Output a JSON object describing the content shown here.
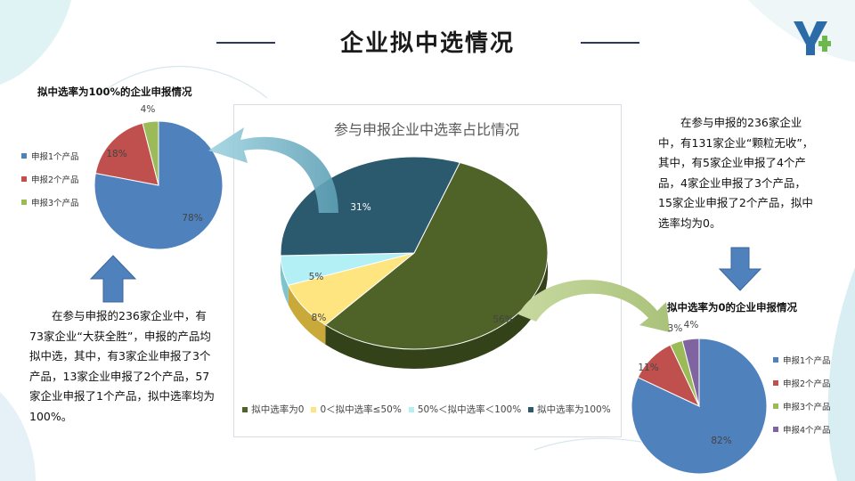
{
  "page_title": "企业拟中选情况",
  "left_chart_title": "拟中选率为100%的企业申报情况",
  "right_chart_title": "拟中选率为0的企业申报情况",
  "center_chart_title": "参与申报企业中选率占比情况",
  "left_paragraph": "在参与申报的236家企业中，有73家企业“大获全胜”，申报的产品均拟中选，其中，有3家企业申报了3个产品，13家企业申报了2个产品，57家企业申报了1个产品，拟中选率均为100%。",
  "right_paragraph": "在参与申报的236家企业中，有131家企业“颗粒无收”，其中，有5家企业申报了4个产品，4家企业申报了3个产品，15家企业申报了2个产品，拟中选率均为0。",
  "colors": {
    "blue": "#4f81bd",
    "red": "#c0504d",
    "green": "#9bbb59",
    "purple": "#8064a2",
    "olive": "#4f6228",
    "yellow": "#ffe57f",
    "cyan": "#b3f0f5",
    "teal": "#2b5a6e"
  },
  "chart_data": [
    {
      "type": "pie",
      "title": "拟中选率为100%的企业申报情况",
      "categories": [
        "申报1个产品",
        "申报2个产品",
        "申报3个产品"
      ],
      "values": [
        78,
        18,
        4
      ],
      "data_labels": [
        "78%",
        "18%",
        "4%"
      ],
      "colors": [
        "#4f81bd",
        "#c0504d",
        "#9bbb59"
      ],
      "legend": "left"
    },
    {
      "type": "pie",
      "title": "参与申报企业中选率占比情况",
      "style": "3d",
      "categories": [
        "拟中选率为0",
        "0＜拟中选率≤50%",
        "50%＜拟中选率＜100%",
        "拟中选率为100%"
      ],
      "values": [
        56,
        8,
        5,
        31
      ],
      "data_labels": [
        "56%",
        "8%",
        "5%",
        "31%"
      ],
      "colors": [
        "#4f6228",
        "#ffe57f",
        "#b3f0f5",
        "#2b5a6e"
      ],
      "legend": "bottom"
    },
    {
      "type": "pie",
      "title": "拟中选率为0的企业申报情况",
      "categories": [
        "申报1个产品",
        "申报2个产品",
        "申报3个产品",
        "申报4个产品"
      ],
      "values": [
        82,
        11,
        3,
        4
      ],
      "data_labels": [
        "82%",
        "11%",
        "3%",
        "4%"
      ],
      "colors": [
        "#4f81bd",
        "#c0504d",
        "#9bbb59",
        "#8064a2"
      ],
      "legend": "right"
    }
  ]
}
